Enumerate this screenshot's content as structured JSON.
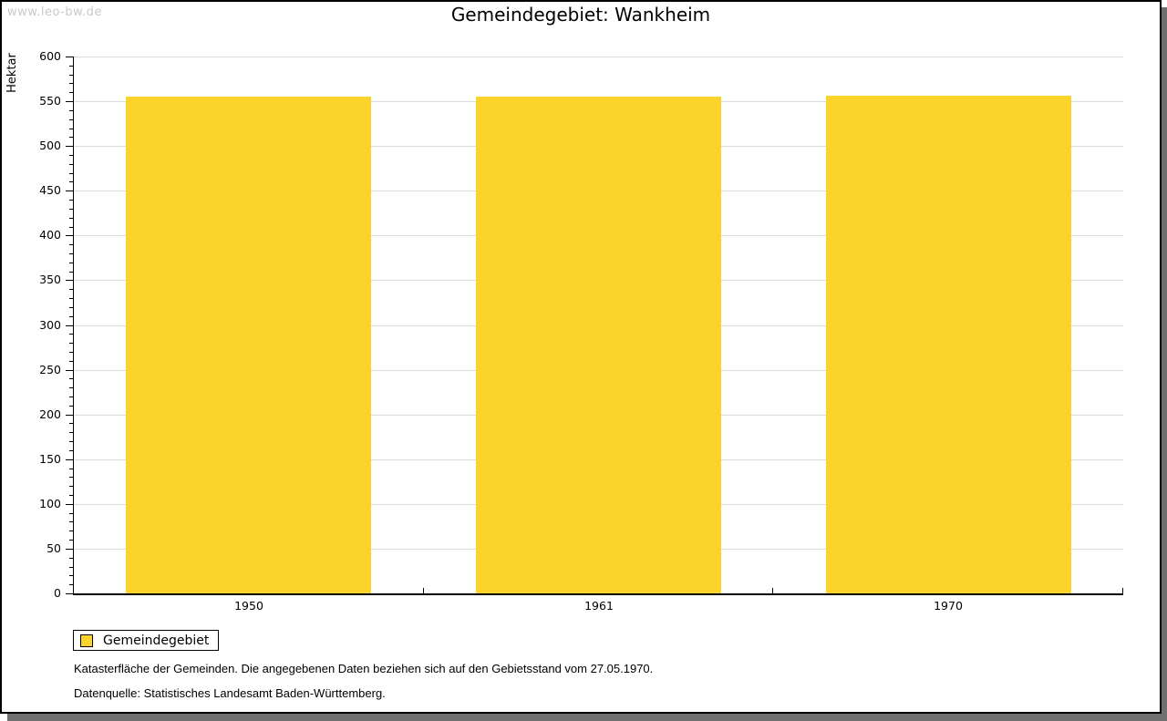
{
  "watermark": "www.leo-bw.de",
  "title": "Gemeindegebiet: Wankheim",
  "legend": {
    "label": "Gemeindegebiet",
    "swatch_color": "#fcd32b"
  },
  "footnotes": {
    "line1": "Katasterfläche der Gemeinden. Die angegebenen Daten beziehen sich auf den Gebietsstand vom 27.05.1970.",
    "line2": "Datenquelle: Statistisches Landesamt Baden-Württemberg."
  },
  "colors": {
    "bar": "#fcd32b",
    "gridline": "#dcdcdc",
    "axis": "#000000",
    "watermark": "#c9c9c9",
    "shadow": "#6f6f6f"
  },
  "chart_data": {
    "type": "bar",
    "title": "Gemeindegebiet: Wankheim",
    "categories": [
      "1950",
      "1961",
      "1970"
    ],
    "series": [
      {
        "name": "Gemeindegebiet",
        "values": [
          555,
          555,
          556
        ]
      }
    ],
    "xlabel": "",
    "ylabel": "Hektar",
    "ylim": [
      0,
      600
    ],
    "y_major_step": 50,
    "y_minor_step": 10,
    "grid": true,
    "legend_position": "bottom-left",
    "bar_color": "#fcd32b"
  }
}
